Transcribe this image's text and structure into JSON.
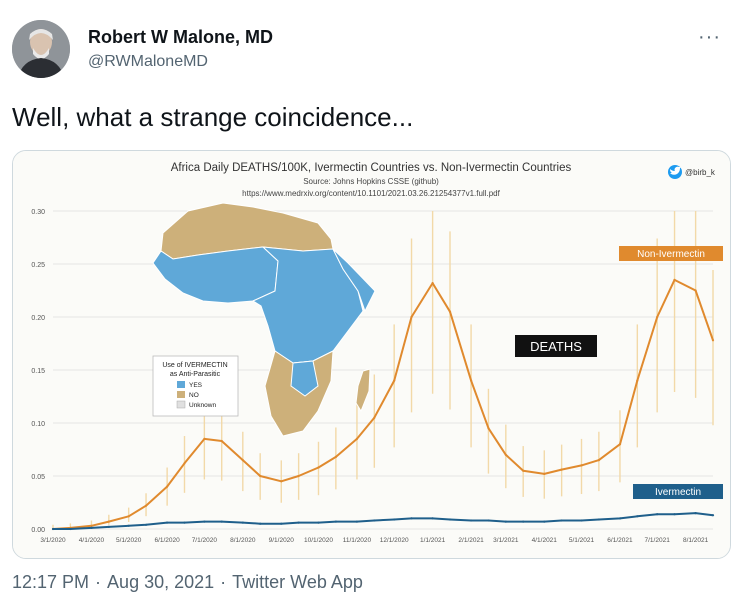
{
  "tweet": {
    "author_name": "Robert W Malone, MD",
    "author_handle": "@RWMaloneMD",
    "more_label": "···",
    "text": "Well, what a strange coincidence...",
    "time": "12:17 PM",
    "date": "Aug 30, 2021",
    "source": "Twitter Web App",
    "separator": "·"
  },
  "icons": {
    "more": "more-options-icon",
    "attribution": "twitter-bird-icon"
  },
  "colors": {
    "non_ivermectin": "#e08a2e",
    "ivermectin": "#1f5f8b",
    "spikes": "#f2d9a8",
    "map_yes": "#5fa8d8",
    "map_no": "#cdb07a"
  },
  "map": {
    "legend_title": "Use of IVERMECTIN",
    "legend_subtitle": "as Anti-Parasitic",
    "legend_items": [
      "YES",
      "NO",
      "Unknown"
    ]
  },
  "chart_data": {
    "type": "line",
    "title": "Africa Daily DEATHS/100K, Ivermectin Countries vs. Non-Ivermectin Countries",
    "subtitle": "Source: Johns Hopkins CSSE (github)",
    "source_url": "https://www.medrxiv.org/content/10.1101/2021.03.26.21254377v1.full.pdf",
    "attribution": "@birb_k",
    "annotation": "DEATHS",
    "ylim": [
      0,
      0.3
    ],
    "yticks": [
      "0.00",
      "0.05",
      "0.10",
      "0.15",
      "0.20",
      "0.25",
      "0.30"
    ],
    "xtick_labels": [
      "3/1/2020",
      "4/1/2020",
      "5/1/2020",
      "6/1/2020",
      "7/1/2020",
      "8/1/2020",
      "9/1/2020",
      "10/1/2020",
      "11/1/2020",
      "12/1/2020",
      "1/1/2021",
      "2/1/2021",
      "3/1/2021",
      "4/1/2021",
      "5/1/2021",
      "6/1/2021",
      "7/1/2021",
      "8/1/2021"
    ],
    "x": [
      "2020-03-01",
      "2020-03-15",
      "2020-04-01",
      "2020-04-15",
      "2020-05-01",
      "2020-05-15",
      "2020-06-01",
      "2020-06-15",
      "2020-07-01",
      "2020-07-15",
      "2020-08-01",
      "2020-08-15",
      "2020-09-01",
      "2020-09-15",
      "2020-10-01",
      "2020-10-15",
      "2020-11-01",
      "2020-11-15",
      "2020-12-01",
      "2020-12-15",
      "2021-01-01",
      "2021-01-15",
      "2021-02-01",
      "2021-02-15",
      "2021-03-01",
      "2021-03-15",
      "2021-04-01",
      "2021-04-15",
      "2021-05-01",
      "2021-05-15",
      "2021-06-01",
      "2021-06-15",
      "2021-07-01",
      "2021-07-15",
      "2021-08-01",
      "2021-08-15"
    ],
    "series": [
      {
        "name": "Non-Ivermectin",
        "values": [
          0.0,
          0.001,
          0.003,
          0.007,
          0.012,
          0.022,
          0.04,
          0.062,
          0.085,
          0.083,
          0.065,
          0.05,
          0.045,
          0.05,
          0.058,
          0.068,
          0.085,
          0.105,
          0.14,
          0.2,
          0.232,
          0.205,
          0.14,
          0.095,
          0.07,
          0.055,
          0.052,
          0.056,
          0.06,
          0.065,
          0.08,
          0.14,
          0.2,
          0.235,
          0.225,
          0.178
        ]
      },
      {
        "name": "Ivermectin",
        "values": [
          0.0,
          0.0,
          0.001,
          0.002,
          0.003,
          0.004,
          0.006,
          0.006,
          0.007,
          0.007,
          0.006,
          0.005,
          0.005,
          0.006,
          0.006,
          0.007,
          0.007,
          0.008,
          0.009,
          0.01,
          0.01,
          0.009,
          0.008,
          0.008,
          0.007,
          0.007,
          0.007,
          0.008,
          0.008,
          0.009,
          0.01,
          0.012,
          0.014,
          0.014,
          0.015,
          0.013
        ]
      }
    ]
  }
}
